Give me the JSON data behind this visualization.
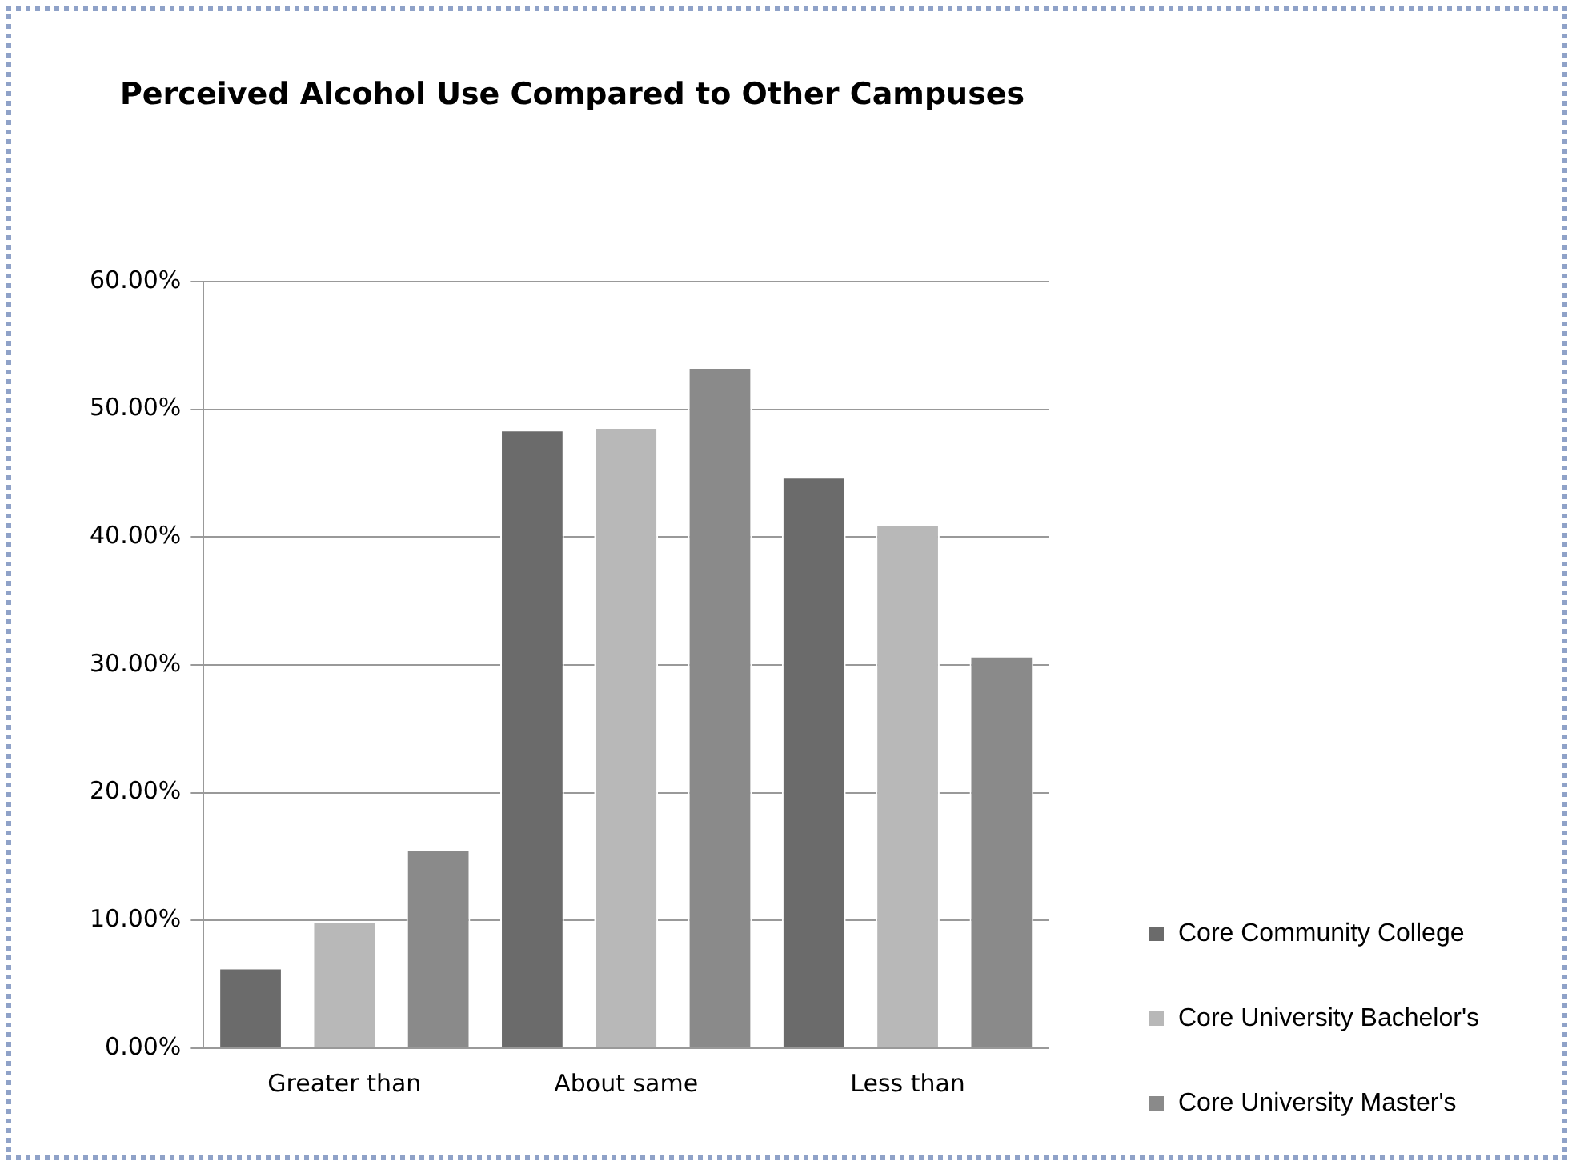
{
  "chart_data": {
    "type": "bar",
    "title": "Perceived Alcohol Use Compared to Other Campuses",
    "categories": [
      "Greater than",
      "About same",
      "Less than"
    ],
    "series": [
      {
        "name": "Core Community College",
        "color": "#6b6b6b",
        "values": [
          6.3,
          48.4,
          44.7
        ]
      },
      {
        "name": "Core University Bachelor's",
        "color": "#b8b8b8",
        "values": [
          9.9,
          48.6,
          41.0
        ]
      },
      {
        "name": "Core University Master's",
        "color": "#8a8a8a",
        "values": [
          15.6,
          53.3,
          30.7
        ]
      }
    ],
    "ylim": [
      0,
      60
    ],
    "yticks": [
      {
        "value": 0,
        "label": "0.00%"
      },
      {
        "value": 10,
        "label": "10.00%"
      },
      {
        "value": 20,
        "label": "20.00%"
      },
      {
        "value": 30,
        "label": "30.00%"
      },
      {
        "value": 40,
        "label": "40.00%"
      },
      {
        "value": 50,
        "label": "50.00%"
      },
      {
        "value": 60,
        "label": "60.00%"
      }
    ],
    "grid": "y",
    "legend": "right"
  }
}
